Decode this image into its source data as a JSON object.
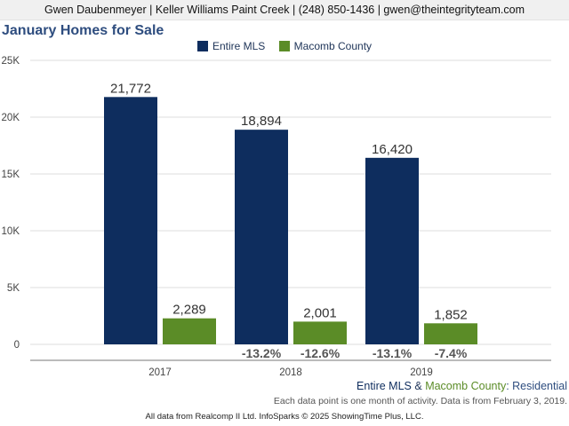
{
  "header": {
    "contact": "Gwen Daubenmeyer | Keller Williams Paint Creek | (248) 850-1436 | gwen@theintegrityteam.com"
  },
  "chart_data": {
    "type": "bar",
    "title": "January Homes for Sale",
    "categories": [
      "2017",
      "2018",
      "2019"
    ],
    "ylim": [
      0,
      25000
    ],
    "yticks": [
      {
        "value": 0,
        "label": "0"
      },
      {
        "value": 5000,
        "label": "5K"
      },
      {
        "value": 10000,
        "label": "10K"
      },
      {
        "value": 15000,
        "label": "15K"
      },
      {
        "value": 20000,
        "label": "20K"
      },
      {
        "value": 25000,
        "label": "25K"
      }
    ],
    "grid": true,
    "legend_position": "top-center",
    "series": [
      {
        "name": "Entire MLS",
        "color": "#0e2d5e",
        "values": [
          21772,
          18894,
          16420
        ],
        "value_labels": [
          "21,772",
          "18,894",
          "16,420"
        ],
        "change_labels": [
          "",
          "-13.2%",
          "-13.1%"
        ]
      },
      {
        "name": "Macomb County",
        "color": "#5b8c27",
        "values": [
          2289,
          2001,
          1852
        ],
        "value_labels": [
          "2,289",
          "2,001",
          "1,852"
        ],
        "change_labels": [
          "",
          "-12.6%",
          "-7.4%"
        ]
      }
    ]
  },
  "footer": {
    "series_a": "Entire MLS",
    "amp": " & ",
    "series_b": "Macomb County",
    "property_type": ": Residential",
    "note": "Each data point is one month of activity. Data is from February 3, 2019.",
    "copyright": "All data from Realcomp II Ltd. InfoSparks © 2025 ShowingTime Plus, LLC."
  }
}
